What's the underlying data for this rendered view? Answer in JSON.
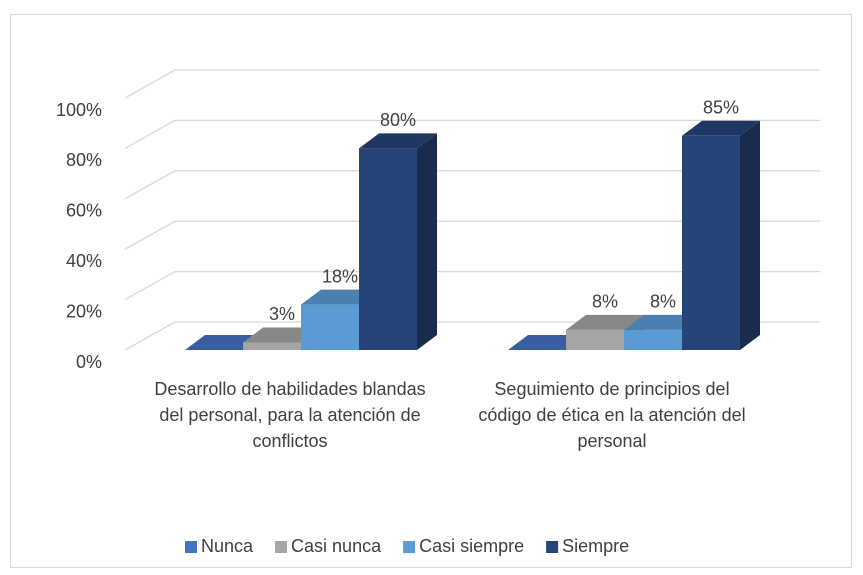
{
  "chart_data": {
    "type": "bar3d",
    "categories": [
      "Desarrollo de habilidades blandas del personal, para la atención de conflictos",
      "Seguimiento de principios del código de ética en la atención del personal"
    ],
    "series": [
      {
        "name": "Nunca",
        "color": "#4472c4",
        "values": [
          0,
          0
        ]
      },
      {
        "name": "Casi nunca",
        "color": "#a5a5a5",
        "values": [
          3,
          8
        ],
        "value_labels": [
          "3%",
          "8%"
        ]
      },
      {
        "name": "Casi siempre",
        "color": "#5b9bd5",
        "values": [
          18,
          8
        ],
        "value_labels": [
          "18%",
          "8%"
        ]
      },
      {
        "name": "Siempre",
        "color": "#264478",
        "values": [
          80,
          85
        ],
        "value_labels": [
          "80%",
          "85%"
        ]
      }
    ],
    "ylim": [
      0,
      100
    ],
    "yticks": [
      {
        "value": 0,
        "label": "0%"
      },
      {
        "value": 20,
        "label": "20%"
      },
      {
        "value": 40,
        "label": "40%"
      },
      {
        "value": 60,
        "label": "60%"
      },
      {
        "value": 80,
        "label": "80%"
      },
      {
        "value": 100,
        "label": "100%"
      }
    ],
    "grid": true,
    "legend": "bottom"
  }
}
